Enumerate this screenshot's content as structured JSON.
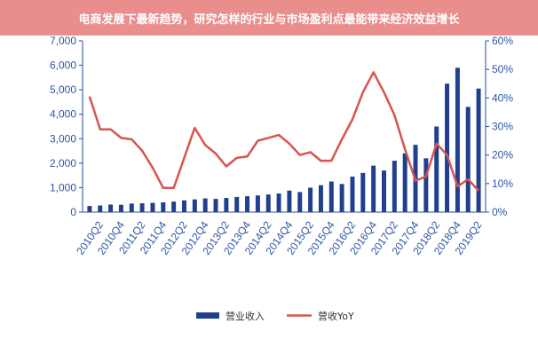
{
  "banner": {
    "title": "电商发展下最新趋势，研究怎样的行业与市场盈利点最能带来经济效益增长"
  },
  "chart_data": {
    "type": "bar+line",
    "categories": [
      "2010Q1",
      "2010Q2",
      "2010Q3",
      "2010Q4",
      "2011Q1",
      "2011Q2",
      "2011Q3",
      "2011Q4",
      "2012Q1",
      "2012Q2",
      "2012Q3",
      "2012Q4",
      "2013Q1",
      "2013Q2",
      "2013Q3",
      "2013Q4",
      "2014Q1",
      "2014Q2",
      "2014Q3",
      "2014Q4",
      "2015Q1",
      "2015Q2",
      "2015Q3",
      "2015Q4",
      "2016Q1",
      "2016Q2",
      "2016Q3",
      "2016Q4",
      "2017Q1",
      "2017Q2",
      "2017Q3",
      "2017Q4",
      "2018Q1",
      "2018Q2",
      "2018Q3",
      "2018Q4",
      "2019Q1",
      "2019Q2"
    ],
    "x_tick_labels": [
      "2010Q2",
      "2010Q4",
      "2011Q2",
      "2011Q4",
      "2012Q2",
      "2012Q4",
      "2013Q2",
      "2013Q4",
      "2014Q2",
      "2014Q4",
      "2015Q2",
      "2015Q4",
      "2016Q2",
      "2016Q4",
      "2017Q2",
      "2017Q4",
      "2018Q2",
      "2018Q4",
      "2019Q2"
    ],
    "y_left": {
      "min": 0,
      "max": 7000,
      "ticks": [
        "0",
        "1,000",
        "2,000",
        "3,000",
        "4,000",
        "5,000",
        "6,000",
        "7,000"
      ]
    },
    "y_right": {
      "min": 0,
      "max": 60,
      "ticks": [
        "0%",
        "10%",
        "20%",
        "30%",
        "40%",
        "50%",
        "60%"
      ]
    },
    "series": [
      {
        "name": "营业收入",
        "kind": "bar",
        "axis": "left",
        "color": "#1f3f8f",
        "values": [
          250,
          270,
          310,
          300,
          350,
          360,
          380,
          400,
          430,
          480,
          520,
          560,
          540,
          580,
          620,
          650,
          680,
          720,
          760,
          880,
          820,
          1000,
          1100,
          1250,
          1150,
          1450,
          1600,
          1900,
          1700,
          2100,
          2400,
          2750,
          2200,
          3500,
          5250,
          5900,
          4300,
          5050
        ]
      },
      {
        "name": "营收YoY",
        "kind": "line",
        "axis": "right",
        "color": "#d9534f",
        "values": [
          40.5,
          29,
          29,
          26,
          25.5,
          21.5,
          15.5,
          8.5,
          8.5,
          19,
          29.5,
          23.5,
          20.5,
          16,
          19,
          19.5,
          25,
          26,
          27,
          24,
          20,
          21,
          18,
          18,
          25.5,
          32.5,
          42,
          49,
          42,
          34,
          22,
          11,
          12.5,
          24,
          20,
          9,
          11.5,
          7.5
        ]
      }
    ],
    "legend": {
      "placement": "bottom-center"
    },
    "colors": {
      "axis_text": "#2e56a6",
      "axis_line": "#2a4a9a",
      "banner_bg": "#e98d8d"
    }
  }
}
